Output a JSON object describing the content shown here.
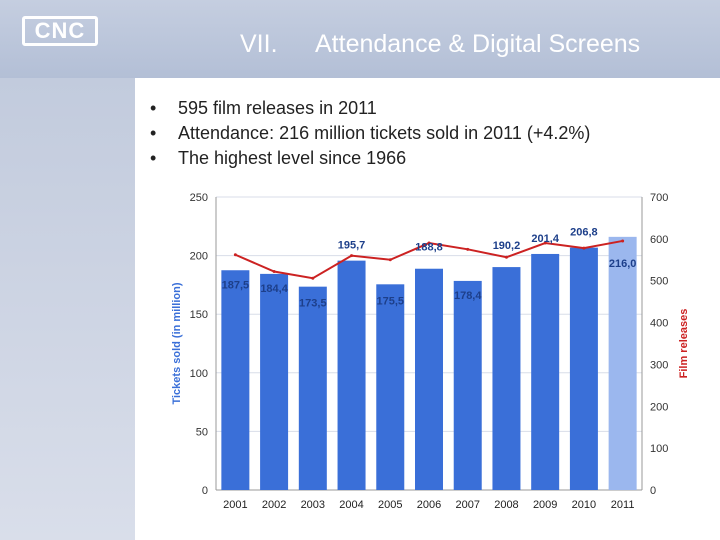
{
  "header": {
    "logo": "CNC",
    "section_number": "VII.",
    "title": "Attendance & Digital Screens"
  },
  "bullets": [
    "595 film releases in 2011",
    "Attendance: 216 million tickets sold in 2011 (+4.2%)",
    "The highest level since 1966"
  ],
  "chart_data": {
    "type": "bar",
    "categories": [
      "2001",
      "2002",
      "2003",
      "2004",
      "2005",
      "2006",
      "2007",
      "2008",
      "2009",
      "2010",
      "2011"
    ],
    "series": [
      {
        "axis": "left",
        "values": [
          187.5,
          184.4,
          173.5,
          195.7,
          175.5,
          188.8,
          178.4,
          190.2,
          201.4,
          206.8,
          216.0
        ],
        "labels": [
          "187,5",
          "184,4",
          "173,5",
          "195,7",
          "175,5",
          "188,8",
          "178,4",
          "190,2",
          "201,4",
          "206,8",
          "216,0"
        ],
        "color": "#3a6fd8",
        "highlight_color": "#9bb7ee"
      },
      {
        "axis": "right",
        "type": "line",
        "values": [
          562,
          522,
          506,
          560,
          550,
          590,
          575,
          556,
          590,
          578,
          595
        ],
        "color": "#cc2222"
      }
    ],
    "ylabel": "Tickets sold (in million)",
    "ylabel_color": "#3a6fd8",
    "y2label": "Film releases",
    "y2label_color": "#cc2222",
    "ylim": [
      0,
      250
    ],
    "y2lim": [
      0,
      700
    ],
    "yticks": [
      0,
      50,
      100,
      150,
      200,
      250
    ],
    "y2ticks": [
      0,
      100,
      200,
      300,
      400,
      500,
      600,
      700
    ],
    "grid": true,
    "legend": "none"
  }
}
